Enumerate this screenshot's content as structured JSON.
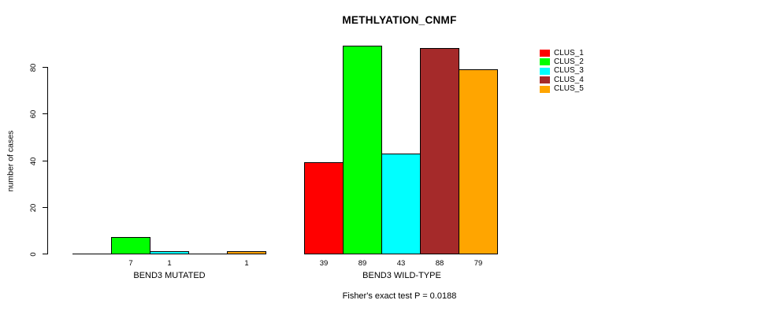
{
  "chart_data": {
    "type": "bar",
    "title": "METHLYATION_CNMF",
    "ylabel": "number of cases",
    "xlabel": "",
    "categories": [
      "BEND3 MUTATED",
      "BEND3 WILD-TYPE"
    ],
    "series": [
      {
        "name": "CLUS_1",
        "color": "#FF0000",
        "values": [
          0,
          39
        ]
      },
      {
        "name": "CLUS_2",
        "color": "#00FF00",
        "values": [
          7,
          89
        ]
      },
      {
        "name": "CLUS_3",
        "color": "#00FFFF",
        "values": [
          1,
          43
        ]
      },
      {
        "name": "CLUS_4",
        "color": "#A52A2A",
        "values": [
          0,
          88
        ]
      },
      {
        "name": "CLUS_5",
        "color": "#FFA500",
        "values": [
          1,
          79
        ]
      }
    ],
    "yticks": [
      0,
      20,
      40,
      60,
      80
    ],
    "ylim": [
      0,
      89
    ],
    "grid": false,
    "legend_position": "right",
    "bar_border_color": "#000000",
    "background_color": "#FFFFFF",
    "annotation": "Fisher's exact test P = 0.0188",
    "value_labels_note": "counts shown under each non-zero bar"
  }
}
